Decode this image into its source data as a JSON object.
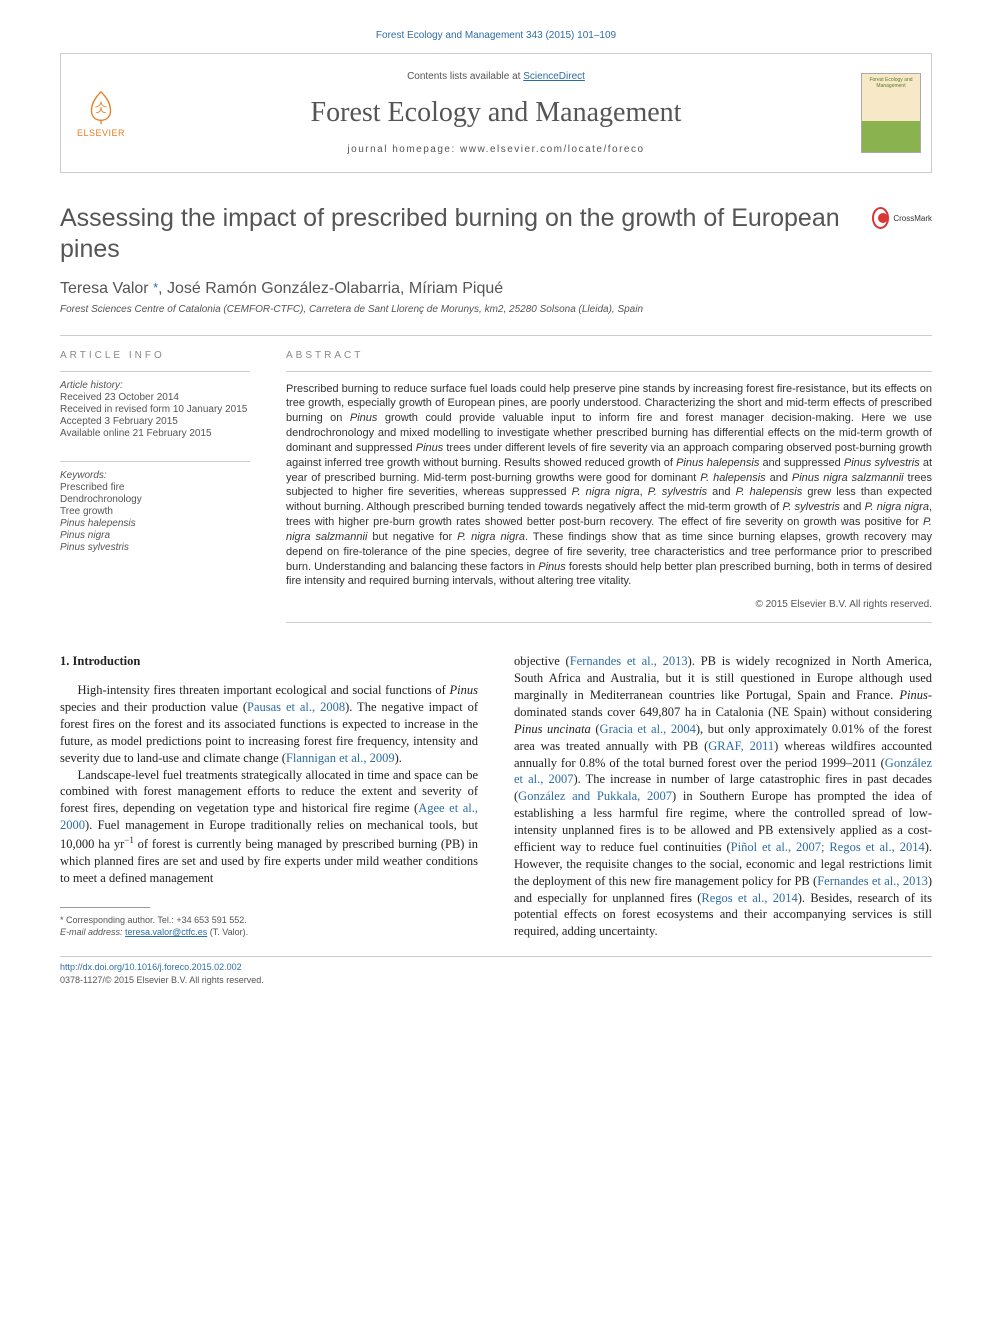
{
  "citation": "Forest Ecology and Management 343 (2015) 101–109",
  "masthead": {
    "contents_prefix": "Contents lists available at ",
    "contents_link": "ScienceDirect",
    "journal_name": "Forest Ecology and Management",
    "homepage_prefix": "journal homepage: ",
    "homepage_url": "www.elsevier.com/locate/foreco",
    "publisher": "ELSEVIER",
    "cover_caption": "Forest Ecology and Management"
  },
  "colors": {
    "link": "#2e6da4",
    "heading_gray": "#555555",
    "label_gray": "#888888",
    "rule": "#cccccc",
    "elsevier_orange": "#e67e22",
    "crossmark_red": "#d93636"
  },
  "title": "Assessing the impact of prescribed burning on the growth of European pines",
  "crossmark": "CrossMark",
  "authors_html": "Teresa Valor <span class='corr'>*</span>, José Ramón González-Olabarria, Míriam Piqué",
  "affiliation": "Forest Sciences Centre of Catalonia (CEMFOR-CTFC), Carretera de Sant Llorenç de Morunys, km2, 25280 Solsona (Lleida), Spain",
  "article_info": {
    "heading": "ARTICLE INFO",
    "history_label": "Article history:",
    "history": [
      "Received 23 October 2014",
      "Received in revised form 10 January 2015",
      "Accepted 3 February 2015",
      "Available online 21 February 2015"
    ],
    "keywords_label": "Keywords:",
    "keywords": [
      {
        "text": "Prescribed fire",
        "italic": false
      },
      {
        "text": "Dendrochronology",
        "italic": false
      },
      {
        "text": "Tree growth",
        "italic": false
      },
      {
        "text": "Pinus halepensis",
        "italic": true
      },
      {
        "text": "Pinus nigra",
        "italic": true
      },
      {
        "text": "Pinus sylvestris",
        "italic": true
      }
    ]
  },
  "abstract": {
    "heading": "ABSTRACT",
    "text_html": "Prescribed burning to reduce surface fuel loads could help preserve pine stands by increasing forest fire-resistance, but its effects on tree growth, especially growth of European pines, are poorly understood. Characterizing the short and mid-term effects of prescribed burning on <span class='ital'>Pinus</span> growth could provide valuable input to inform fire and forest manager decision-making. Here we use dendrochronology and mixed modelling to investigate whether prescribed burning has differential effects on the mid-term growth of dominant and suppressed <span class='ital'>Pinus</span> trees under different levels of fire severity via an approach comparing observed post-burning growth against inferred tree growth without burning. Results showed reduced growth of <span class='ital'>Pinus halepensis</span> and suppressed <span class='ital'>Pinus sylvestris</span> at year of prescribed burning. Mid-term post-burning growths were good for dominant <span class='ital'>P. halepensis</span> and <span class='ital'>Pinus nigra salzmannii</span> trees subjected to higher fire severities, whereas suppressed <span class='ital'>P. nigra nigra</span>, <span class='ital'>P. sylvestris</span> and <span class='ital'>P. halepensis</span> grew less than expected without burning. Although prescribed burning tended towards negatively affect the mid-term growth of <span class='ital'>P. sylvestris</span> and <span class='ital'>P. nigra nigra</span>, trees with higher pre-burn growth rates showed better post-burn recovery. The effect of fire severity on growth was positive for <span class='ital'>P. nigra salzmannii</span> but negative for <span class='ital'>P. nigra nigra</span>. These findings show that as time since burning elapses, growth recovery may depend on fire-tolerance of the pine species, degree of fire severity, tree characteristics and tree performance prior to prescribed burn. Understanding and balancing these factors in <span class='ital'>Pinus</span> forests should help better plan prescribed burning, both in terms of desired fire intensity and required burning intervals, without altering tree vitality.",
    "copyright": "© 2015 Elsevier B.V. All rights reserved."
  },
  "body": {
    "section_heading": "1. Introduction",
    "col1": [
      "High-intensity fires threaten important ecological and social functions of <span class='ital'>Pinus</span> species and their production value (<span class='cite'>Pausas et al., 2008</span>). The negative impact of forest fires on the forest and its associated functions is expected to increase in the future, as model predictions point to increasing forest fire frequency, intensity and severity due to land-use and climate change (<span class='cite'>Flannigan et al., 2009</span>).",
      "Landscape-level fuel treatments strategically allocated in time and space can be combined with forest management efforts to reduce the extent and severity of forest fires, depending on vegetation type and historical fire regime (<span class='cite'>Agee et al., 2000</span>). Fuel management in Europe traditionally relies on mechanical tools, but 10,000 ha yr<span class='sup'>−1</span> of forest is currently being managed by prescribed burning (PB) in which planned fires are set and used by fire experts under mild weather conditions to meet a defined management"
    ],
    "col2": [
      "objective (<span class='cite'>Fernandes et al., 2013</span>). PB is widely recognized in North America, South Africa and Australia, but it is still questioned in Europe although used marginally in Mediterranean countries like Portugal, Spain and France. <span class='ital'>Pinus</span>-dominated stands cover 649,807 ha in Catalonia (NE Spain) without considering <span class='ital'>Pinus uncinata</span> (<span class='cite'>Gracia et al., 2004</span>), but only approximately 0.01% of the forest area was treated annually with PB (<span class='cite'>GRAF, 2011</span>) whereas wildfires accounted annually for 0.8% of the total burned forest over the period 1999–2011 (<span class='cite'>González et al., 2007</span>). The increase in number of large catastrophic fires in past decades (<span class='cite'>González and Pukkala, 2007</span>) in Southern Europe has prompted the idea of establishing a less harmful fire regime, where the controlled spread of low-intensity unplanned fires is to be allowed and PB extensively applied as a cost-efficient way to reduce fuel continuities (<span class='cite'>Piñol et al., 2007; Regos et al., 2014</span>). However, the requisite changes to the social, economic and legal restrictions limit the deployment of this new fire management policy for PB (<span class='cite'>Fernandes et al., 2013</span>) and especially for unplanned fires (<span class='cite'>Regos et al., 2014</span>). Besides, research of its potential effects on forest ecosystems and their accompanying services is still required, adding uncertainty."
    ]
  },
  "footnotes": {
    "corr_label": "* Corresponding author. Tel.: +34 653 591 552.",
    "email_label": "E-mail address:",
    "email": "teresa.valor@ctfc.es",
    "email_suffix": "(T. Valor)."
  },
  "bottom": {
    "doi": "http://dx.doi.org/10.1016/j.foreco.2015.02.002",
    "issn_line": "0378-1127/© 2015 Elsevier B.V. All rights reserved."
  }
}
